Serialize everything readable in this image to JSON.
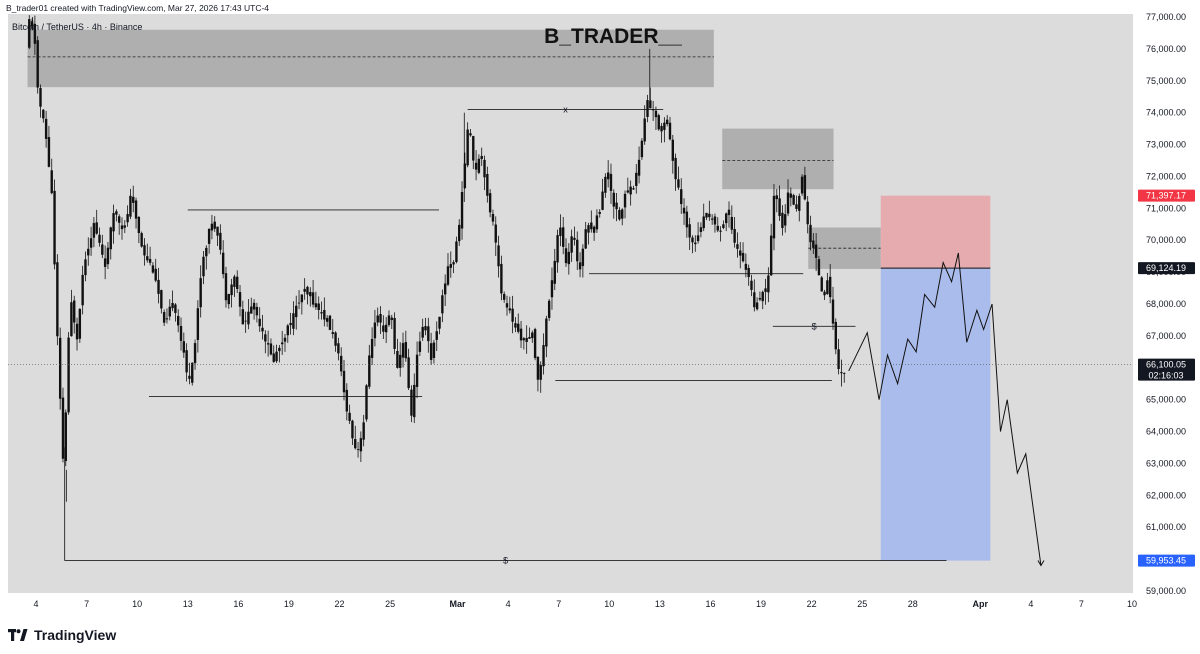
{
  "header": {
    "attribution": "B_trader01 created with TradingView.com, Mar 27, 2026 17:43 UTC-4"
  },
  "chart_info": "Bitcoin / TetherUS · 4h · Binance",
  "watermark": "B_TRADER__",
  "footer": {
    "brand": "TradingView"
  },
  "colors": {
    "background": "#dcdcdc",
    "candle": "#111111",
    "supply_zone": "#a7a7a7",
    "stop_zone": "#e6a8ac",
    "target_zone": "#a7b9ec",
    "stop_tag": "#f23645",
    "target_tag": "#2962ff",
    "current_tag": "#131722"
  },
  "chart_data": {
    "type": "candlestick",
    "symbol": "Bitcoin / TetherUS",
    "timeframe": "4h",
    "exchange": "Binance",
    "y_axis": {
      "range": [
        58800,
        77000
      ],
      "ticks": [
        77000,
        76000,
        75000,
        74000,
        73000,
        72000,
        71000,
        70000,
        69000,
        68000,
        67000,
        66000,
        65000,
        64000,
        63000,
        62000,
        61000,
        60000,
        59000
      ],
      "tick_labels": [
        "77,000.00",
        "76,000.00",
        "75,000.00",
        "74,000.00",
        "73,000.00",
        "72,000.00",
        "71,000.00",
        "70,000.00",
        "69,000.00",
        "68,000.00",
        "67,000.00",
        "66,000.00",
        "65,000.00",
        "64,000.00",
        "63,000.00",
        "62,000.00",
        "61,000.00",
        "60,000.00",
        "59,000.00"
      ]
    },
    "x_axis": {
      "day_range": [
        3,
        41
      ],
      "ticks": [
        4,
        7,
        10,
        13,
        16,
        19,
        22,
        25,
        29,
        32,
        35,
        38,
        41,
        44,
        47,
        50,
        53,
        56,
        60,
        63,
        66,
        69
      ],
      "tick_labels": [
        "4",
        "7",
        "10",
        "13",
        "16",
        "19",
        "22",
        "25",
        "Mar",
        "4",
        "7",
        "10",
        "13",
        "16",
        "19",
        "22",
        "25",
        "28",
        "Apr",
        "4",
        "7",
        "10"
      ]
    },
    "price_path": [
      [
        3.6,
        76000
      ],
      [
        3.8,
        77000
      ],
      [
        4.1,
        76200
      ],
      [
        4.3,
        74500
      ],
      [
        4.7,
        73500
      ],
      [
        5.1,
        71500
      ],
      [
        5.5,
        66000
      ],
      [
        5.8,
        62800
      ],
      [
        6.2,
        68200
      ],
      [
        6.6,
        67000
      ],
      [
        7.0,
        69300
      ],
      [
        7.6,
        70500
      ],
      [
        8.3,
        69200
      ],
      [
        8.8,
        71000
      ],
      [
        9.4,
        70300
      ],
      [
        9.8,
        71400
      ],
      [
        10.5,
        69700
      ],
      [
        11.2,
        69000
      ],
      [
        11.8,
        67200
      ],
      [
        12.3,
        68200
      ],
      [
        12.8,
        66800
      ],
      [
        13.2,
        65500
      ],
      [
        13.6,
        66800
      ],
      [
        14.0,
        69300
      ],
      [
        14.6,
        70600
      ],
      [
        15.0,
        70200
      ],
      [
        15.4,
        68200
      ],
      [
        16.0,
        68900
      ],
      [
        16.4,
        67300
      ],
      [
        17.0,
        68000
      ],
      [
        17.6,
        67200
      ],
      [
        18.2,
        66200
      ],
      [
        18.8,
        66900
      ],
      [
        19.4,
        67600
      ],
      [
        20.0,
        68400
      ],
      [
        20.6,
        68100
      ],
      [
        21.4,
        67500
      ],
      [
        22.0,
        66700
      ],
      [
        22.4,
        65300
      ],
      [
        22.8,
        64200
      ],
      [
        23.2,
        63300
      ],
      [
        23.6,
        64300
      ],
      [
        24.0,
        66800
      ],
      [
        24.4,
        67600
      ],
      [
        24.8,
        67000
      ],
      [
        25.2,
        67800
      ],
      [
        25.6,
        65900
      ],
      [
        26.0,
        67000
      ],
      [
        26.4,
        64400
      ],
      [
        26.8,
        66500
      ],
      [
        27.2,
        67600
      ],
      [
        27.6,
        66300
      ],
      [
        28.0,
        67400
      ],
      [
        28.6,
        69200
      ],
      [
        29.0,
        69400
      ],
      [
        29.4,
        71200
      ],
      [
        29.8,
        73700
      ],
      [
        30.2,
        72200
      ],
      [
        30.6,
        72700
      ],
      [
        31.0,
        71200
      ],
      [
        31.4,
        70200
      ],
      [
        31.8,
        68100
      ],
      [
        32.2,
        67900
      ],
      [
        32.6,
        67200
      ],
      [
        33.2,
        66800
      ],
      [
        33.6,
        67000
      ],
      [
        34.0,
        65500
      ],
      [
        34.4,
        67400
      ],
      [
        34.8,
        68800
      ],
      [
        35.2,
        70700
      ],
      [
        35.6,
        69200
      ],
      [
        36.0,
        70200
      ],
      [
        36.4,
        69000
      ],
      [
        36.8,
        70600
      ],
      [
        37.2,
        70300
      ],
      [
        37.6,
        71000
      ],
      [
        38.0,
        72300
      ],
      [
        38.4,
        71200
      ],
      [
        38.8,
        70700
      ],
      [
        39.2,
        71600
      ],
      [
        39.6,
        71700
      ],
      [
        40.0,
        72700
      ],
      [
        40.4,
        74400
      ],
      [
        40.8,
        74000
      ],
      [
        41.2,
        73400
      ],
      [
        41.6,
        73900
      ],
      [
        42.0,
        72200
      ],
      [
        42.4,
        71200
      ],
      [
        42.8,
        70300
      ],
      [
        43.2,
        69900
      ],
      [
        43.6,
        70500
      ],
      [
        44.0,
        70900
      ],
      [
        44.4,
        70500
      ],
      [
        44.8,
        70300
      ],
      [
        45.2,
        71000
      ],
      [
        45.6,
        70000
      ],
      [
        46.0,
        69400
      ],
      [
        46.4,
        69000
      ],
      [
        46.8,
        67800
      ],
      [
        47.2,
        68200
      ],
      [
        47.6,
        68800
      ],
      [
        48.0,
        71800
      ],
      [
        48.4,
        70300
      ],
      [
        48.8,
        71500
      ],
      [
        49.2,
        70900
      ],
      [
        49.6,
        71900
      ],
      [
        50.0,
        70200
      ],
      [
        50.4,
        69500
      ],
      [
        50.8,
        68400
      ],
      [
        51.2,
        68700
      ],
      [
        51.6,
        66500
      ],
      [
        51.8,
        66000
      ],
      [
        52.0,
        65800
      ]
    ],
    "projection_path": [
      [
        52.2,
        65900
      ],
      [
        53.3,
        67100
      ],
      [
        54.0,
        65000
      ],
      [
        54.5,
        66400
      ],
      [
        55.1,
        65500
      ],
      [
        55.7,
        66900
      ],
      [
        56.2,
        66500
      ],
      [
        56.7,
        68300
      ],
      [
        57.3,
        67900
      ],
      [
        57.8,
        69300
      ],
      [
        58.3,
        68700
      ],
      [
        58.7,
        69600
      ],
      [
        59.2,
        66800
      ],
      [
        59.8,
        67800
      ],
      [
        60.2,
        67200
      ],
      [
        60.7,
        68000
      ],
      [
        61.2,
        64000
      ],
      [
        61.6,
        65000
      ],
      [
        62.2,
        62700
      ],
      [
        62.7,
        63300
      ],
      [
        63.6,
        59800
      ]
    ],
    "zones": [
      {
        "role": "supply",
        "x": [
          3.5,
          44.2
        ],
        "y": [
          74800,
          76600
        ],
        "midline": 75750
      },
      {
        "role": "supply",
        "x": [
          44.7,
          51.3
        ],
        "y": [
          71600,
          73500
        ],
        "midline": 72500
      },
      {
        "role": "supply",
        "x": [
          49.8,
          54.1
        ],
        "y": [
          69100,
          70400
        ],
        "midline": 69750
      },
      {
        "role": "stop",
        "x": [
          54.1,
          60.6
        ],
        "y": [
          69124,
          71397
        ]
      },
      {
        "role": "target",
        "x": [
          54.1,
          60.6
        ],
        "y": [
          59953,
          69124
        ]
      }
    ],
    "level_lines": [
      {
        "label": "",
        "x": [
          10.7,
          26.9
        ],
        "y": 65100
      },
      {
        "label": "",
        "x": [
          13.0,
          27.9
        ],
        "y": 70950
      },
      {
        "label": "x",
        "x": [
          29.6,
          41.2
        ],
        "y": 74100
      },
      {
        "label": "",
        "x": [
          34.8,
          51.2
        ],
        "y": 65600
      },
      {
        "label": "",
        "x": [
          36.8,
          49.5
        ],
        "y": 68950
      },
      {
        "label": "$",
        "x": [
          47.7,
          52.6
        ],
        "y": 67300
      },
      {
        "label": "$",
        "x": [
          5.7,
          58.0
        ],
        "y": 59953
      }
    ],
    "current_price": 66100.05,
    "price_labels": {
      "stop": "71,397.17",
      "entry": "69,124.19",
      "current": "66,100.05",
      "countdown": "02:16:03",
      "target": "59,953.45"
    },
    "price_levels": {
      "stop": 71397.17,
      "entry": 69124.19,
      "target": 59953.45
    }
  }
}
